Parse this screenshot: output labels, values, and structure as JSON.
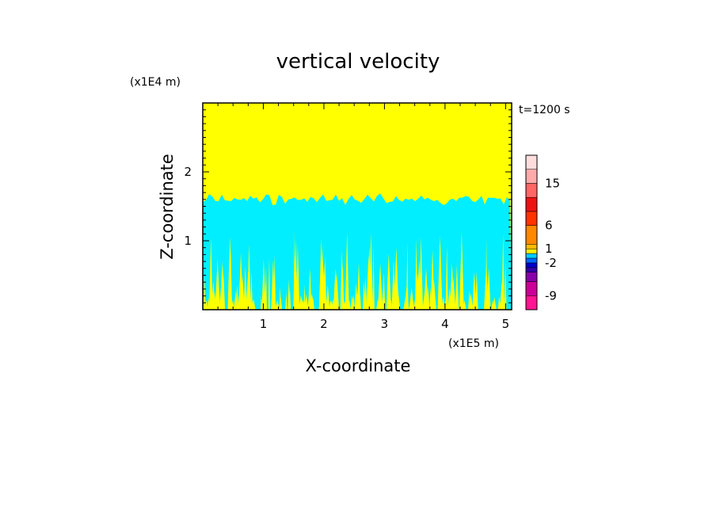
{
  "chart_data": {
    "type": "heatmap",
    "title": "vertical velocity",
    "xlabel": "X-coordinate",
    "ylabel": "Z-coordinate",
    "x_scale_label": "(x1E5 m)",
    "y_scale_label": "(x1E4 m)",
    "time_label": "t=1200 s",
    "xlim": [
      0,
      5.1
    ],
    "ylim": [
      0,
      3.0
    ],
    "x_ticks": [
      1,
      2,
      3,
      4,
      5
    ],
    "y_ticks": [
      1,
      2
    ],
    "regions": [
      {
        "name": "upper-layer",
        "value_range": "0 to 1",
        "color": "#ffff00",
        "z_bottom": 1.6,
        "z_top": 3.0
      },
      {
        "name": "middle-layer",
        "value_range": "-1 to 0",
        "color": "#00eeff",
        "z_bottom": 0.0,
        "z_top": 1.6
      },
      {
        "name": "lower-plumes",
        "value_range": "0 to 1",
        "color": "#ffff00",
        "z_bottom": 0.0,
        "z_top": 1.0
      }
    ],
    "colorbar": {
      "labels": [
        "15",
        "6",
        "1",
        "-2",
        "-9"
      ],
      "bands": [
        {
          "color": "#ff1493",
          "lo": -12,
          "hi": -9
        },
        {
          "color": "#cc0099",
          "lo": -9,
          "hi": -6
        },
        {
          "color": "#8800aa",
          "lo": -6,
          "hi": -4
        },
        {
          "color": "#3300aa",
          "lo": -4,
          "hi": -3
        },
        {
          "color": "#0000cc",
          "lo": -3,
          "hi": -2
        },
        {
          "color": "#0066ff",
          "lo": -2,
          "hi": -1
        },
        {
          "color": "#00ccff",
          "lo": -1,
          "hi": 0
        },
        {
          "color": "#ffee00",
          "lo": 0,
          "hi": 1
        },
        {
          "color": "#ffbb00",
          "lo": 1,
          "hi": 2
        },
        {
          "color": "#ff8800",
          "lo": 2,
          "hi": 6
        },
        {
          "color": "#ff3300",
          "lo": 6,
          "hi": 9
        },
        {
          "color": "#ee1111",
          "lo": 9,
          "hi": 12
        },
        {
          "color": "#ff6666",
          "lo": 12,
          "hi": 15
        },
        {
          "color": "#ffaaaa",
          "lo": 15,
          "hi": 18
        },
        {
          "color": "#ffdddd",
          "lo": 18,
          "hi": 21
        }
      ]
    }
  }
}
